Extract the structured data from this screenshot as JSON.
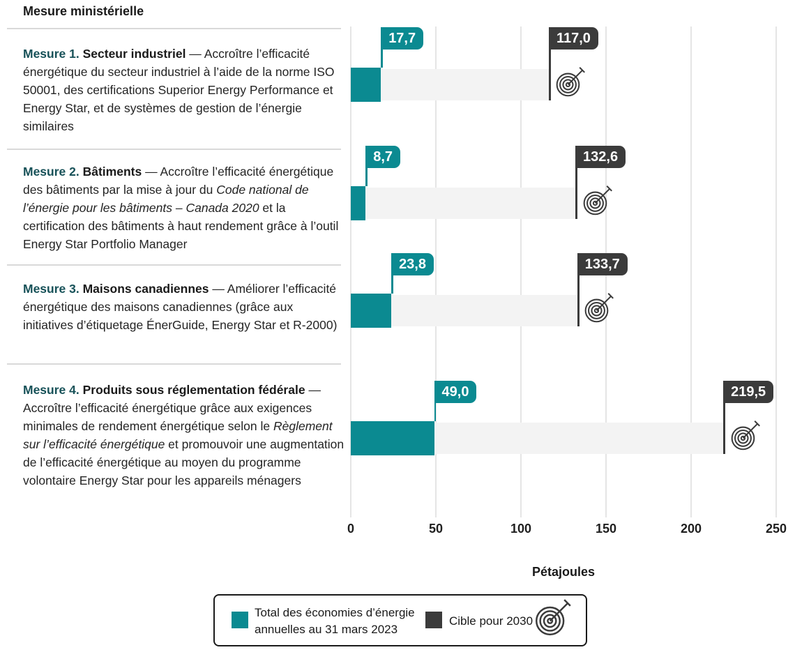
{
  "page": {
    "title": "Mesure ministérielle"
  },
  "measures": [
    {
      "num": "Mesure 1.",
      "topic": "Secteur industriel",
      "segments": [
        {
          "text": " — Accroître l’efficacité énergétique du secteur industriel à l’aide de la norme ISO 50001, des certifications Superior Energy Performance et Energy Star, et de systèmes de gestion de l’énergie similaires"
        }
      ]
    },
    {
      "num": "Mesure 2.",
      "topic": "Bâtiments",
      "segments": [
        {
          "text": " — Accroître l’efficacité énergétique des bâtiments par la mise à jour du "
        },
        {
          "text": "Code national de l’énergie pour les bâtiments – Canada 2020",
          "italic": true
        },
        {
          "text": " et la certification des bâtiments à haut rendement grâce à l’outil Energy Star Portfolio Manager"
        }
      ]
    },
    {
      "num": "Mesure 3.",
      "topic": "Maisons canadiennes",
      "segments": [
        {
          "text": " — Améliorer l’efficacité énergétique des maisons canadiennes (grâce aux initiatives d’étiquetage ÉnerGuide, Energy Star et R-2000)"
        }
      ]
    },
    {
      "num": "Mesure 4.",
      "topic": "Produits sous réglementation fédérale",
      "segments": [
        {
          "text": " — Accroître l’efficacité énergétique grâce aux exigences minimales de rendement énergétique selon le "
        },
        {
          "text": "Règlement sur l’efficacité énergétique",
          "italic": true
        },
        {
          "text": " et promouvoir une augmentation de l’efficacité énergétique au moyen du programme volontaire Energy Star pour les appareils ménagers"
        }
      ]
    }
  ],
  "chart_data": {
    "type": "bar",
    "orientation": "horizontal",
    "categories": [
      "Mesure 1",
      "Mesure 2",
      "Mesure 3",
      "Mesure 4"
    ],
    "series": [
      {
        "name": "Total des économies d’énergie annuelles au 31 mars 2023",
        "color": "#0b8a91",
        "values": [
          17.7,
          8.7,
          23.8,
          49.0
        ],
        "labels": [
          "17,7",
          "8,7",
          "23,8",
          "49,0"
        ]
      },
      {
        "name": "Cible pour 2030",
        "color": "#3b3b3b",
        "values": [
          117.0,
          132.6,
          133.7,
          219.5
        ],
        "labels": [
          "117,0",
          "132,6",
          "133,7",
          "219,5"
        ]
      }
    ],
    "xlabel": "Pétajoules",
    "x_ticks": [
      0,
      50,
      100,
      150,
      200,
      250
    ],
    "xlim": [
      0,
      250
    ],
    "grid": true,
    "legend_position": "bottom"
  },
  "legend": {
    "items": [
      {
        "label": "Total des économies d’énergie annuelles au 31 mars 2023",
        "color": "#0b8a91",
        "icon": null
      },
      {
        "label": "Cible pour 2030",
        "color": "#3b3b3b",
        "icon": "target-icon"
      }
    ]
  },
  "colors": {
    "teal": "#0b8a91",
    "dark": "#3b3b3b",
    "measure_label": "#175158",
    "track": "#f3f3f3",
    "grid": "#e5e5e5",
    "rule": "#d9d9d9"
  }
}
